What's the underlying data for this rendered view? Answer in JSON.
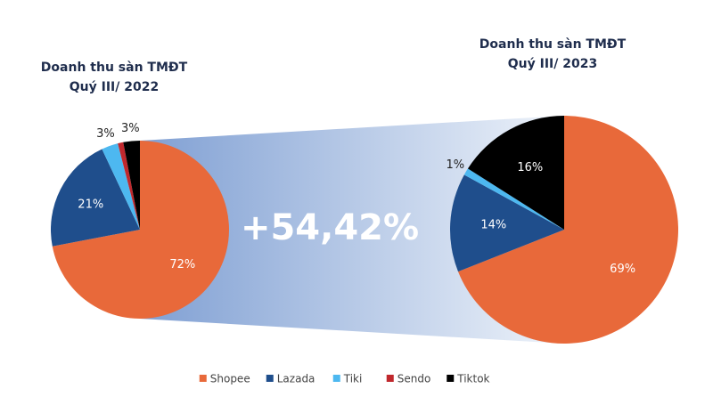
{
  "annotation": "+54,42%",
  "chart_data": [
    {
      "type": "pie",
      "title": [
        "Doanh thu sàn TMĐT",
        "Quý III/ 2022"
      ],
      "categories": [
        "Shopee",
        "Lazada",
        "Tiki",
        "Sendo",
        "Tiktok"
      ],
      "values": [
        72,
        21,
        3,
        1,
        3
      ],
      "value_labels": [
        "72%",
        "21%",
        "3%",
        null,
        "3%"
      ],
      "colors": [
        "#e8693a",
        "#1f4e8c",
        "#4db8f0",
        "#c0282d",
        "#000000"
      ]
    },
    {
      "type": "pie",
      "title": [
        "Doanh thu sàn TMĐT",
        "Quý III/ 2023"
      ],
      "categories": [
        "Shopee",
        "Lazada",
        "Tiki",
        "Sendo",
        "Tiktok"
      ],
      "values": [
        69,
        14,
        1,
        0,
        16
      ],
      "value_labels": [
        "69%",
        "14%",
        "1%",
        null,
        "16%"
      ],
      "colors": [
        "#e8693a",
        "#1f4e8c",
        "#4db8f0",
        "#c0282d",
        "#000000"
      ]
    }
  ]
}
